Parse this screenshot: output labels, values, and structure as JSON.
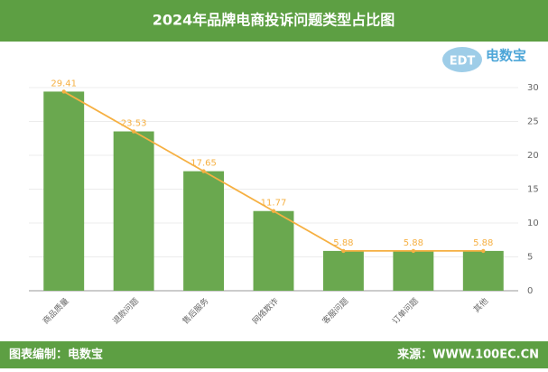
{
  "chart_data": {
    "type": "bar",
    "title": "2024年品牌电商投诉问题类型占比图",
    "logo": {
      "name": "电数宝",
      "mark": "EDT"
    },
    "categories": [
      "商品质量",
      "退款问题",
      "售后服务",
      "网络欺诈",
      "客服问题",
      "订单问题",
      "其他"
    ],
    "values": [
      29.41,
      23.53,
      17.65,
      11.77,
      5.88,
      5.88,
      5.88
    ],
    "color": "#6aa84f",
    "line_color": "#f6b042",
    "show_line": true,
    "ylim": [
      0,
      30
    ],
    "yticks": [
      0,
      5,
      10,
      15,
      20,
      25,
      30
    ],
    "y_axis_side": "right",
    "grid": true,
    "footer": {
      "left": "图表编制：电数宝",
      "right": "来源：WWW.100EC.CN"
    }
  }
}
